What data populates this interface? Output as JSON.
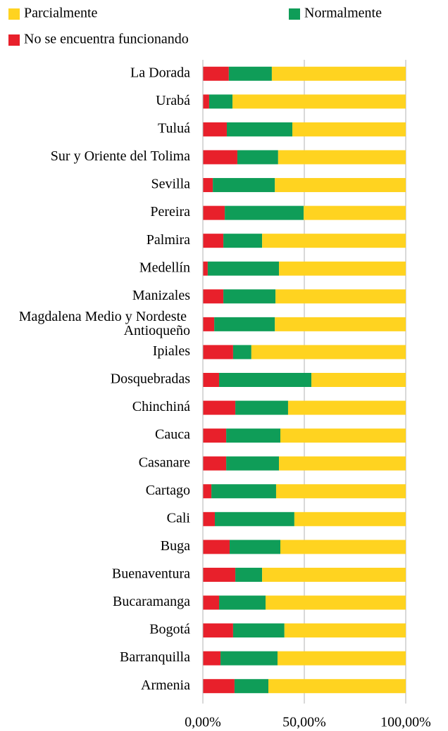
{
  "chart_data": {
    "type": "stacked_barh",
    "categories": [
      "La Dorada",
      "Urabá",
      "Tuluá",
      "Sur y Oriente del Tolima",
      "Sevilla",
      "Pereira",
      "Palmira",
      "Medellín",
      "Manizales",
      "Magdalena Medio y Nordeste Antioqueño",
      "Ipiales",
      "Dosquebradas",
      "Chinchiná",
      "Cauca",
      "Casanare",
      "Cartago",
      "Cali",
      "Buga",
      "Buenaventura",
      "Bucaramanga",
      "Bogotá",
      "Barranquilla",
      "Armenia"
    ],
    "series": [
      {
        "name": "No se encuentra funcionando",
        "color": "#e8202b",
        "values": [
          12.8,
          3.1,
          11.8,
          17.0,
          4.9,
          10.8,
          10.1,
          2.4,
          10.1,
          5.6,
          14.9,
          8.0,
          16.0,
          11.5,
          11.5,
          4.2,
          5.9,
          13.2,
          16.0,
          8.0,
          14.9,
          8.7,
          15.6
        ]
      },
      {
        "name": "Normalmente",
        "color": "#0f9d58",
        "values": [
          21.2,
          11.5,
          32.3,
          20.1,
          30.6,
          38.9,
          19.1,
          35.1,
          25.7,
          29.9,
          9.0,
          45.5,
          26.0,
          26.7,
          26.0,
          31.9,
          39.2,
          25.0,
          13.2,
          22.9,
          25.3,
          28.1,
          16.7
        ]
      },
      {
        "name": "Parcialmente",
        "color": "#ffd320",
        "values": [
          66.0,
          85.4,
          55.9,
          62.9,
          64.5,
          50.3,
          70.8,
          62.5,
          64.2,
          64.5,
          76.1,
          46.5,
          58.0,
          61.8,
          62.5,
          63.9,
          54.9,
          61.8,
          70.8,
          69.1,
          59.8,
          63.2,
          67.7
        ]
      }
    ],
    "xlim": [
      0,
      100
    ],
    "xticks": [
      {
        "value": 0,
        "label": "0,00%"
      },
      {
        "value": 50,
        "label": "50,00%"
      },
      {
        "value": 100,
        "label": "100,00%"
      }
    ],
    "grid": true
  }
}
